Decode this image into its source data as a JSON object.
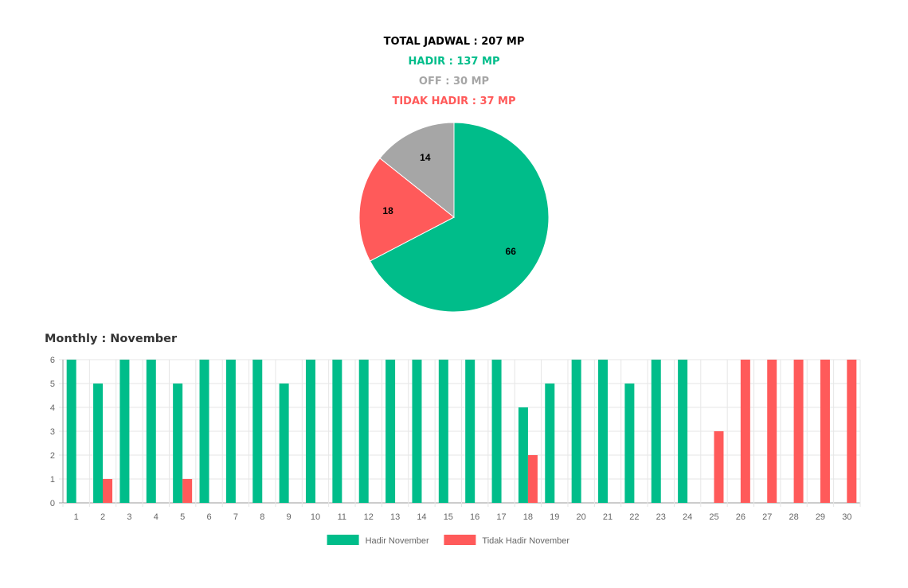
{
  "summary": {
    "total": "TOTAL JADWAL : 207 MP",
    "hadir": "HADIR : 137 MP",
    "off": "OFF : 30 MP",
    "tidak_hadir": "TIDAK HADIR : 37 MP"
  },
  "colors": {
    "hadir": "#00bd8a",
    "off": "#a6a6a6",
    "tidak_hadir": "#ff5a5a",
    "total": "#000000"
  },
  "monthly_title": "Monthly : November",
  "chart_data": [
    {
      "type": "pie",
      "slices": [
        {
          "label": "Hadir",
          "value": 66,
          "color": "#00bd8a"
        },
        {
          "label": "Tidak Hadir",
          "value": 18,
          "color": "#ff5a5a"
        },
        {
          "label": "Off",
          "value": 14,
          "color": "#a6a6a6"
        }
      ]
    },
    {
      "type": "bar",
      "categories": [
        "1",
        "2",
        "3",
        "4",
        "5",
        "6",
        "7",
        "8",
        "9",
        "10",
        "11",
        "12",
        "13",
        "14",
        "15",
        "16",
        "17",
        "18",
        "19",
        "20",
        "21",
        "22",
        "23",
        "24",
        "25",
        "26",
        "27",
        "28",
        "29",
        "30"
      ],
      "series": [
        {
          "name": "Hadir November",
          "color": "#00bd8a",
          "values": [
            6,
            5,
            6,
            6,
            5,
            6,
            6,
            6,
            5,
            6,
            6,
            6,
            6,
            6,
            6,
            6,
            6,
            4,
            5,
            6,
            6,
            5,
            6,
            6,
            0,
            0,
            0,
            0,
            0,
            0
          ]
        },
        {
          "name": "Tidak Hadir November",
          "color": "#ff5a5a",
          "values": [
            0,
            1,
            0,
            0,
            1,
            0,
            0,
            0,
            0,
            0,
            0,
            0,
            0,
            0,
            0,
            0,
            0,
            2,
            0,
            0,
            0,
            0,
            0,
            0,
            3,
            6,
            6,
            6,
            6,
            6
          ]
        }
      ],
      "ylim": [
        0,
        6
      ],
      "yticks": [
        0,
        1,
        2,
        3,
        4,
        5,
        6
      ],
      "grid": true,
      "legend": "bottom"
    }
  ]
}
